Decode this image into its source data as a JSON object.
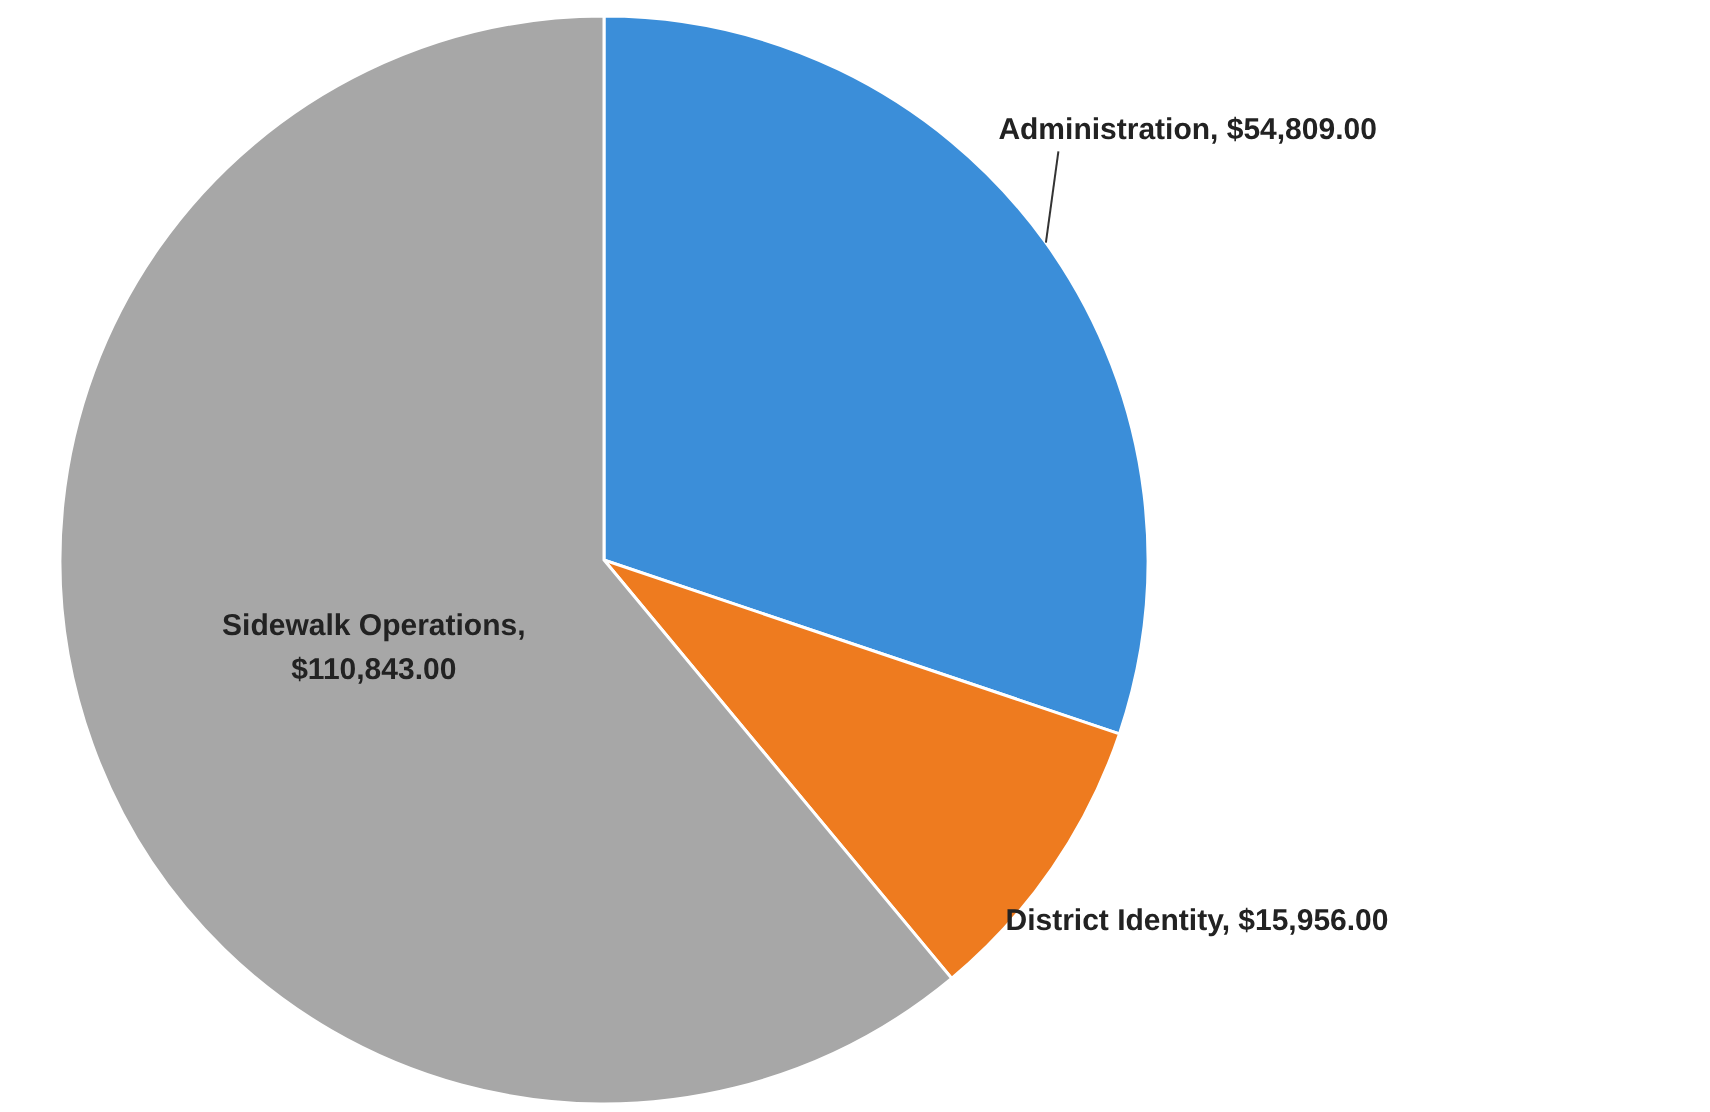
{
  "chart_data": {
    "type": "pie",
    "categories": [
      "Administration",
      "District Identity",
      "Sidewalk Operations"
    ],
    "values": [
      54809,
      15956,
      110843
    ],
    "colors": [
      "#3b8ed9",
      "#ee7b1f",
      "#a7a7a7"
    ],
    "value_labels": [
      ", $54,809.00",
      ", $15,956.00",
      ", $110,843.00"
    ],
    "legend": false
  }
}
